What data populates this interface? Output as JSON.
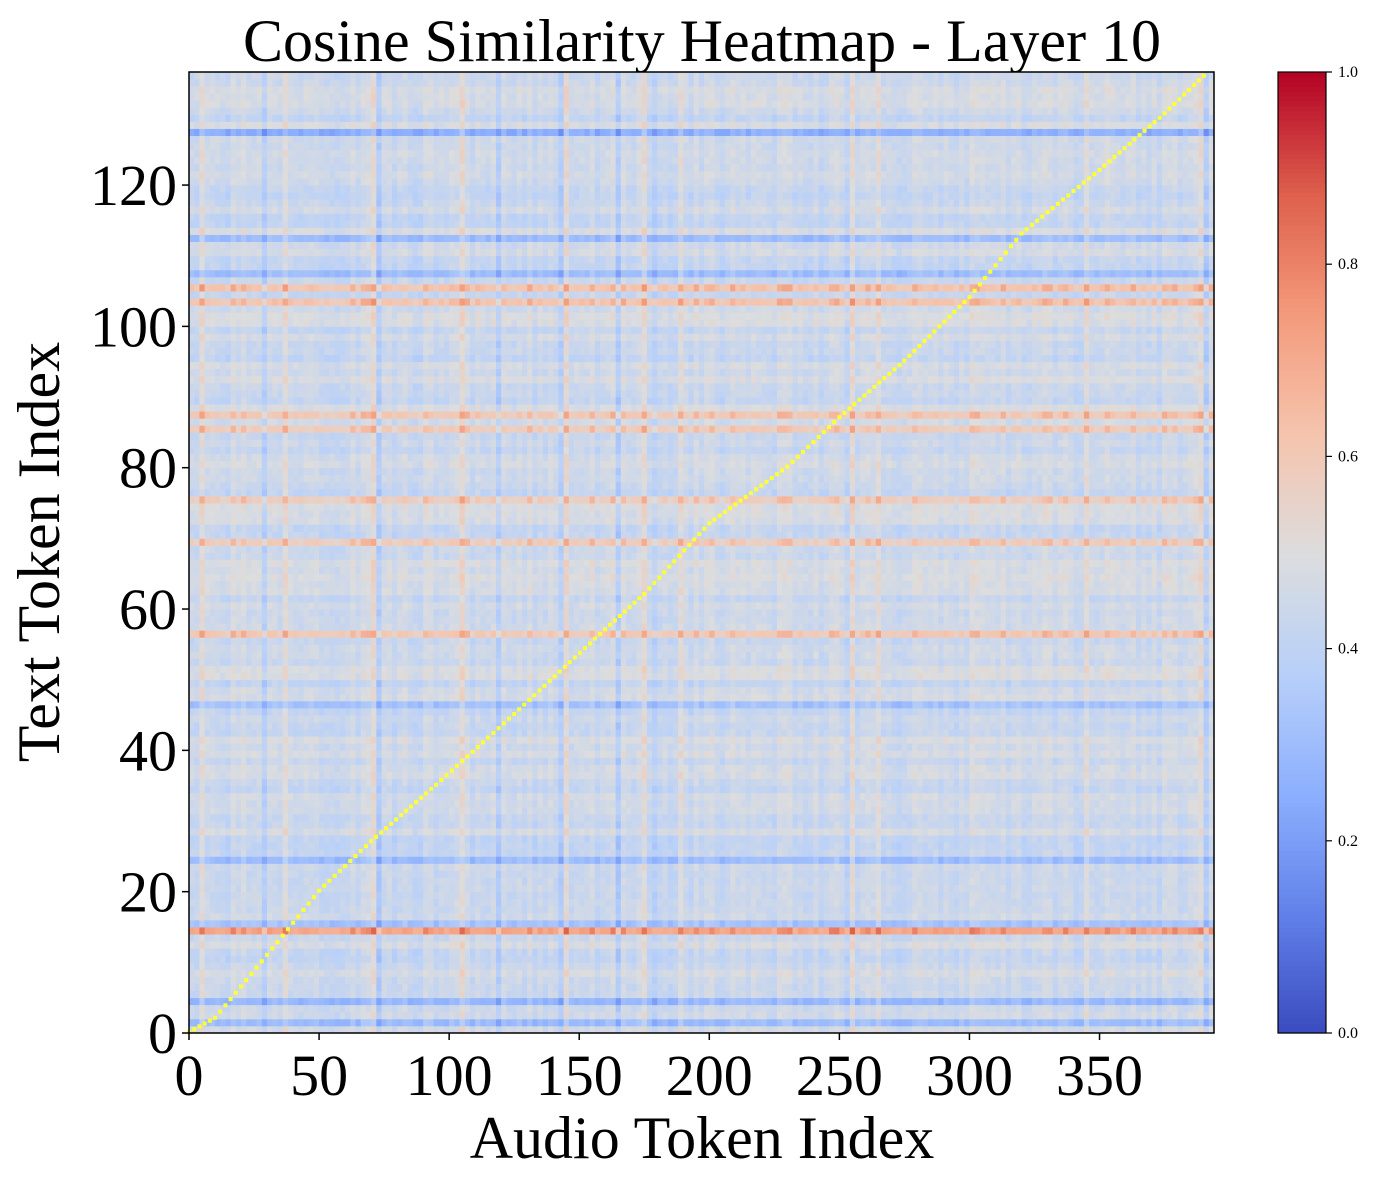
{
  "chart_data": {
    "type": "heatmap",
    "title": "Cosine Similarity Heatmap - Layer 10",
    "xlabel": "Audio Token Index",
    "ylabel": "Text Token Index",
    "x_range": [
      0,
      394
    ],
    "y_range": [
      0,
      136
    ],
    "x_ticks": [
      0,
      50,
      100,
      150,
      200,
      250,
      300,
      350
    ],
    "y_ticks": [
      0,
      20,
      40,
      60,
      80,
      100,
      120
    ],
    "colormap": "coolwarm",
    "color_range": [
      0.0,
      1.0
    ],
    "colorbar_ticks": [
      "0.0",
      "0.2",
      "0.4",
      "0.6",
      "0.8",
      "1.0"
    ],
    "background_level": 0.45,
    "high_rows": [
      {
        "y": 14,
        "value": 0.72
      },
      {
        "y": 56,
        "value": 0.6
      },
      {
        "y": 69,
        "value": 0.58
      },
      {
        "y": 75,
        "value": 0.58
      },
      {
        "y": 85,
        "value": 0.58
      },
      {
        "y": 87,
        "value": 0.6
      },
      {
        "y": 103,
        "value": 0.62
      },
      {
        "y": 105,
        "value": 0.62
      }
    ],
    "low_rows": [
      {
        "y": 1,
        "value": 0.3
      },
      {
        "y": 4,
        "value": 0.28
      },
      {
        "y": 15,
        "value": 0.32
      },
      {
        "y": 24,
        "value": 0.3
      },
      {
        "y": 46,
        "value": 0.32
      },
      {
        "y": 107,
        "value": 0.3
      },
      {
        "y": 112,
        "value": 0.3
      },
      {
        "y": 127,
        "value": 0.25
      }
    ],
    "high_columns": [
      5,
      37,
      70,
      105,
      145,
      175,
      188,
      255,
      265,
      300,
      345,
      388
    ],
    "low_columns": [
      28,
      73,
      118,
      142,
      165,
      178,
      252,
      390
    ],
    "alignment_path": [
      [
        0,
        0
      ],
      [
        10,
        2
      ],
      [
        28,
        10
      ],
      [
        50,
        20
      ],
      [
        70,
        27
      ],
      [
        95,
        35
      ],
      [
        125,
        45
      ],
      [
        160,
        57
      ],
      [
        175,
        62
      ],
      [
        200,
        72
      ],
      [
        230,
        80
      ],
      [
        250,
        87
      ],
      [
        275,
        95
      ],
      [
        300,
        104
      ],
      [
        320,
        113
      ],
      [
        350,
        122
      ],
      [
        375,
        130
      ],
      [
        392,
        136
      ]
    ],
    "alignment_value": 1.0,
    "alignment_color": "#ffff33"
  }
}
